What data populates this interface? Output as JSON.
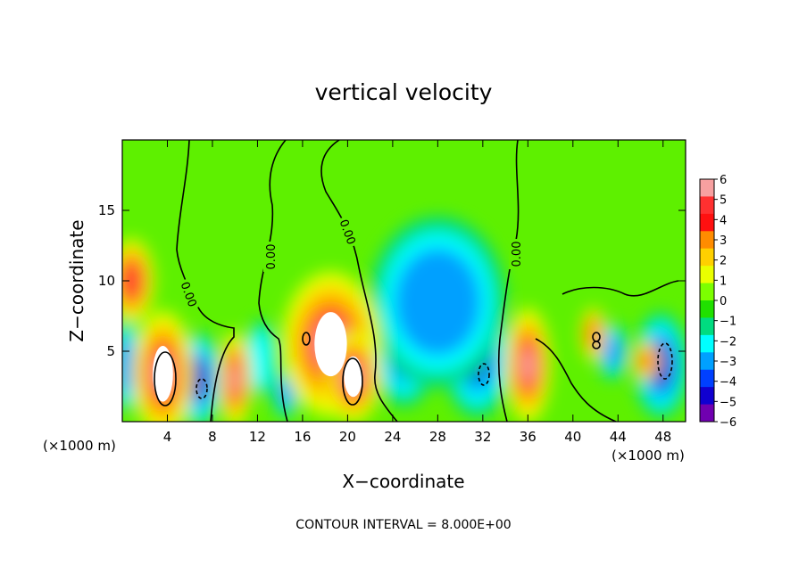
{
  "chart_data": {
    "type": "heatmap",
    "title": "vertical velocity",
    "xlabel": "X−coordinate",
    "ylabel": "Z−coordinate",
    "x_unit_left": "(×1000 m)",
    "x_unit_right": "(×1000 m)",
    "footer": "CONTOUR INTERVAL = 8.000E+00",
    "xlim": [
      0,
      50
    ],
    "ylim": [
      0,
      20
    ],
    "x_ticks": [
      4,
      8,
      12,
      16,
      20,
      24,
      28,
      32,
      36,
      40,
      44,
      48
    ],
    "x_tick_labels": [
      "4",
      "8",
      "12",
      "16",
      "20",
      "24",
      "28",
      "32",
      "36",
      "40",
      "44",
      "48"
    ],
    "y_ticks": [
      5,
      10,
      15
    ],
    "y_tick_labels": [
      "5",
      "10",
      "15"
    ],
    "colorbar": {
      "range": [
        -6,
        6
      ],
      "labels": [
        "6",
        "5",
        "4",
        "3",
        "2",
        "1",
        "0",
        "−1",
        "−2",
        "−3",
        "−4",
        "−5",
        "−6"
      ],
      "colors": [
        "#f7a0a0",
        "#ff3030",
        "#ff1010",
        "#ff8c00",
        "#ffd000",
        "#eaff00",
        "#7cff00",
        "#20e000",
        "#00dc80",
        "#00ffff",
        "#00a0ff",
        "#0040ff",
        "#1000d0",
        "#7000b0"
      ]
    },
    "contour_labels": [
      "0.00",
      "0.00",
      "0.00",
      "0.00",
      "0.00"
    ],
    "features": [
      {
        "kind": "updraft",
        "x": 0.8,
        "z": 10.0,
        "value": 5,
        "rx": 1.5,
        "rz": 2.2
      },
      {
        "kind": "updraft",
        "x": 3.6,
        "z": 3.4,
        "value": 8,
        "rx": 2.0,
        "rz": 3.3
      },
      {
        "kind": "updraft",
        "x": 10.0,
        "z": 3.0,
        "value": 6,
        "rx": 1.1,
        "rz": 2.5
      },
      {
        "kind": "updraft",
        "x": 18.5,
        "z": 5.5,
        "value": 8,
        "rx": 3.2,
        "rz": 3.8
      },
      {
        "kind": "updraft",
        "x": 20.5,
        "z": 3.2,
        "value": 9,
        "rx": 1.8,
        "rz": 2.4
      },
      {
        "kind": "updraft",
        "x": 36.0,
        "z": 4.0,
        "value": 6,
        "rx": 1.5,
        "rz": 3.0
      },
      {
        "kind": "updraft",
        "x": 41.8,
        "z": 6.2,
        "value": 4,
        "rx": 0.8,
        "rz": 1.4
      },
      {
        "kind": "updraft",
        "x": 46.5,
        "z": 4.3,
        "value": 4,
        "rx": 0.9,
        "rz": 1.0
      },
      {
        "kind": "downdraft",
        "x": 0.3,
        "z": 4.0,
        "value": -3,
        "rx": 1.0,
        "rz": 2.5
      },
      {
        "kind": "downdraft",
        "x": 6.8,
        "z": 3.0,
        "value": -5,
        "rx": 1.5,
        "rz": 2.5
      },
      {
        "kind": "downdraft",
        "x": 25.0,
        "z": 5.5,
        "value": -6,
        "rx": 2.2,
        "rz": 3.3
      },
      {
        "kind": "downdraft",
        "x": 31.5,
        "z": 5.0,
        "value": -6,
        "rx": 2.3,
        "rz": 3.5
      },
      {
        "kind": "downdraft",
        "x": 28.0,
        "z": 8.5,
        "value": -3,
        "rx": 4.5,
        "rz": 4.5
      },
      {
        "kind": "downdraft",
        "x": 47.8,
        "z": 4.0,
        "value": -5,
        "rx": 1.8,
        "rz": 2.8
      },
      {
        "kind": "downdraft",
        "x": 43.5,
        "z": 5.0,
        "value": -3,
        "rx": 1.0,
        "rz": 1.5
      },
      {
        "kind": "downdraft",
        "x": 12.3,
        "z": 4.5,
        "value": -2,
        "rx": 1.0,
        "rz": 2.0
      },
      {
        "kind": "downdraft",
        "x": 14.5,
        "z": 2.0,
        "value": -3,
        "rx": 0.8,
        "rz": 1.3
      }
    ]
  }
}
